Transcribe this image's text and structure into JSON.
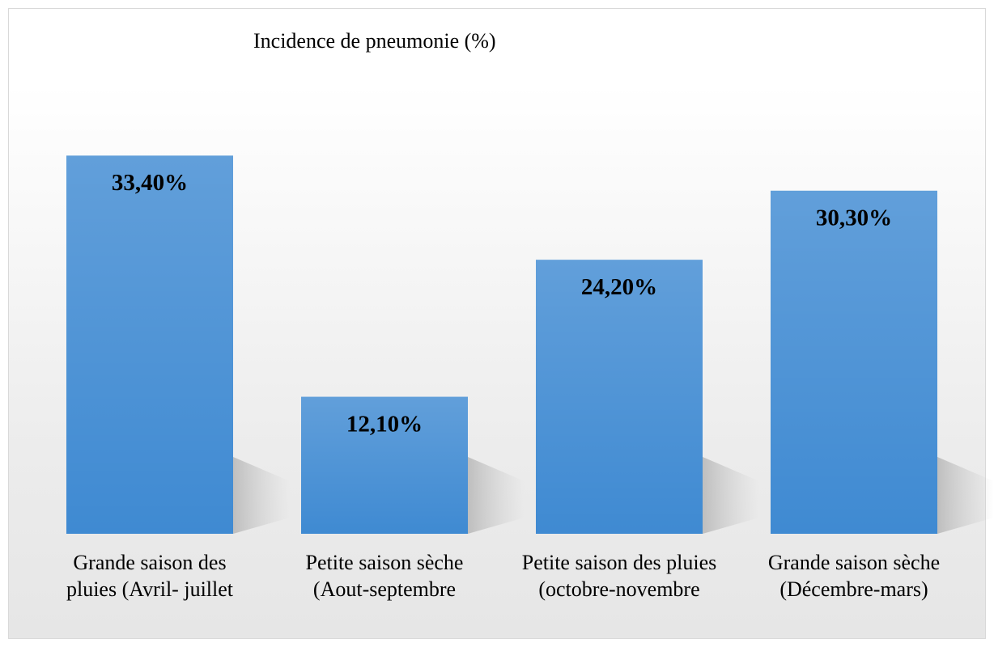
{
  "chart_data": {
    "type": "bar",
    "title": "Incidence de pneumonie (%)",
    "categories": [
      "Grande saison des pluies (Avril- juillet",
      "Petite saison sèche (Aout-septembre",
      "Petite saison des pluies (octobre-novembre",
      "Grande saison sèche (Décembre-mars)"
    ],
    "values": [
      33.4,
      12.1,
      24.2,
      30.3
    ],
    "value_labels": [
      "33,40%",
      "12,10%",
      "24,20%",
      "30,30%"
    ],
    "color": "#3f8ad2"
  }
}
